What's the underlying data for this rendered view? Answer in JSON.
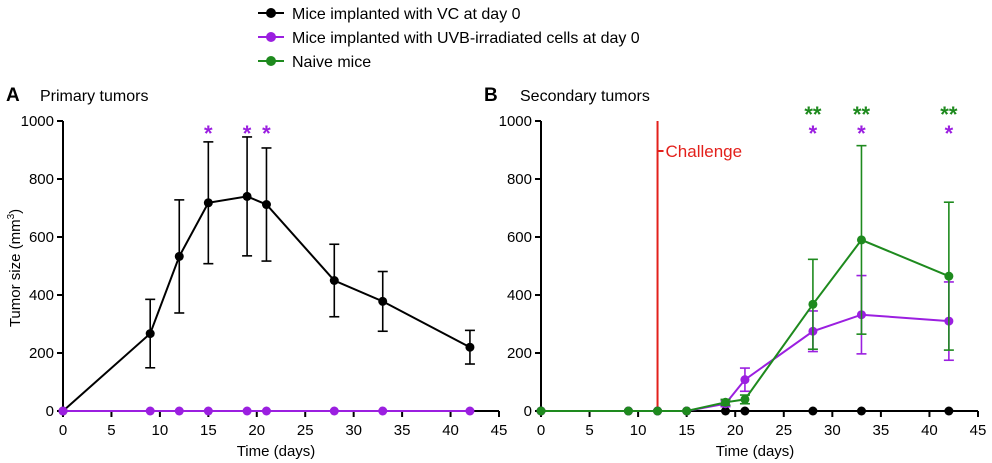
{
  "legend": [
    {
      "label": "Mice implanted with VC at day 0",
      "color": "#000000"
    },
    {
      "label": "Mice implanted with UVB-irradiated cells at day 0",
      "color": "#9b1fe0"
    },
    {
      "label": "Naive mice",
      "color": "#1e8a1e"
    }
  ],
  "colors": {
    "vc": "#000000",
    "uvb": "#9b1fe0",
    "naive": "#1e8a1e",
    "challenge": "#e3201b"
  },
  "chart_data": [
    {
      "type": "line",
      "panel_letter": "A",
      "title": "Primary tumors",
      "xlabel": "Time (days)",
      "ylabel_main": "Tumor size (mm",
      "ylabel_sup": "3",
      "ylabel_close": ")",
      "xlim": [
        0,
        45
      ],
      "ylim": [
        0,
        1000
      ],
      "xticks": [
        "0",
        "5",
        "10",
        "15",
        "20",
        "25",
        "30",
        "35",
        "40",
        "45"
      ],
      "yticks": [
        "0",
        "200",
        "400",
        "600",
        "800",
        "1000"
      ],
      "series": [
        {
          "name": "Mice implanted with VC at day 0",
          "color": "#000000",
          "x": [
            0,
            9,
            12,
            15,
            19,
            21,
            28,
            33,
            42
          ],
          "y": [
            0,
            267,
            533,
            718,
            740,
            712,
            450,
            378,
            220
          ],
          "err": [
            0,
            118,
            195,
            210,
            205,
            195,
            125,
            103,
            58
          ]
        },
        {
          "name": "Mice implanted with UVB-irradiated cells at day 0",
          "color": "#9b1fe0",
          "x": [
            0,
            9,
            12,
            15,
            19,
            21,
            28,
            33,
            42
          ],
          "y": [
            0,
            0,
            0,
            0,
            0,
            0,
            0,
            0,
            0
          ],
          "err": [
            0,
            0,
            0,
            0,
            0,
            0,
            0,
            0,
            0
          ]
        }
      ],
      "annotations": [
        {
          "x": 15,
          "text": "*",
          "color": "#9b1fe0",
          "row": 1
        },
        {
          "x": 19,
          "text": "*",
          "color": "#9b1fe0",
          "row": 1
        },
        {
          "x": 21,
          "text": "*",
          "color": "#9b1fe0",
          "row": 1
        }
      ]
    },
    {
      "type": "line",
      "panel_letter": "B",
      "title": "Secondary tumors",
      "xlabel": "Time (days)",
      "xlim": [
        0,
        45
      ],
      "ylim": [
        0,
        1000
      ],
      "xticks": [
        "0",
        "5",
        "10",
        "15",
        "20",
        "25",
        "30",
        "35",
        "40",
        "45"
      ],
      "yticks": [
        "0",
        "200",
        "400",
        "600",
        "800",
        "1000"
      ],
      "challenge": {
        "x": 12,
        "label": "Challenge"
      },
      "series": [
        {
          "name": "Mice implanted with VC at day 0",
          "color": "#000000",
          "x": [
            0,
            9,
            12,
            15,
            19,
            21,
            28,
            33,
            42
          ],
          "y": [
            0,
            0,
            0,
            0,
            0,
            0,
            0,
            0,
            0
          ],
          "err": [
            0,
            0,
            0,
            0,
            0,
            0,
            0,
            0,
            0
          ]
        },
        {
          "name": "Mice implanted with UVB-irradiated cells at day 0",
          "color": "#9b1fe0",
          "x": [
            0,
            9,
            12,
            15,
            19,
            21,
            28,
            33,
            42
          ],
          "y": [
            0,
            0,
            0,
            0,
            25,
            108,
            275,
            332,
            310
          ],
          "err": [
            0,
            0,
            0,
            0,
            10,
            40,
            70,
            135,
            135
          ]
        },
        {
          "name": "Naive mice",
          "color": "#1e8a1e",
          "x": [
            0,
            9,
            12,
            15,
            19,
            21,
            28,
            33,
            42
          ],
          "y": [
            0,
            0,
            0,
            0,
            30,
            40,
            368,
            590,
            465
          ],
          "err": [
            0,
            0,
            0,
            0,
            10,
            15,
            155,
            325,
            255
          ]
        }
      ],
      "annotations": [
        {
          "x": 28,
          "text": "**",
          "color": "#1e8a1e",
          "row": 0
        },
        {
          "x": 33,
          "text": "**",
          "color": "#1e8a1e",
          "row": 0
        },
        {
          "x": 42,
          "text": "**",
          "color": "#1e8a1e",
          "row": 0
        },
        {
          "x": 28,
          "text": "*",
          "color": "#9b1fe0",
          "row": 1
        },
        {
          "x": 33,
          "text": "*",
          "color": "#9b1fe0",
          "row": 1
        },
        {
          "x": 42,
          "text": "*",
          "color": "#9b1fe0",
          "row": 1
        }
      ]
    }
  ]
}
